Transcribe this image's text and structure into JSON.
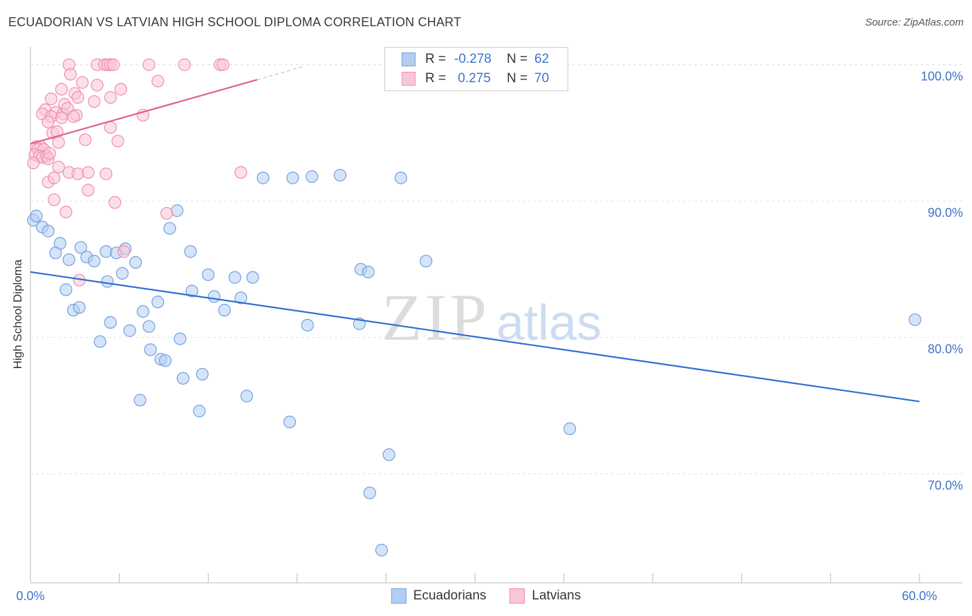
{
  "title": "ECUADORIAN VS LATVIAN HIGH SCHOOL DIPLOMA CORRELATION CHART",
  "source": "Source: ZipAtlas.com",
  "watermark": {
    "zip": "ZIP",
    "atlas": "atlas"
  },
  "legend": {
    "rows": [
      {
        "r_label": "R =",
        "r_value": "-0.278",
        "n_label": "N =",
        "n_value": "62"
      },
      {
        "r_label": "R =",
        "r_value": " 0.275",
        "n_label": "N =",
        "n_value": "70"
      }
    ]
  },
  "chart_data": {
    "type": "scatter",
    "title": "ECUADORIAN VS LATVIAN HIGH SCHOOL DIPLOMA CORRELATION CHART",
    "xlabel": "",
    "ylabel": "High School Diploma",
    "xlim": [
      0,
      60
    ],
    "ylim": [
      62,
      101
    ],
    "x_tick_labels": [
      "0.0%",
      "60.0%"
    ],
    "y_ticks": [
      70,
      80,
      90,
      100
    ],
    "y_tick_labels": [
      "70.0%",
      "80.0%",
      "90.0%",
      "100.0%"
    ],
    "grid": true,
    "legend_position": "top-center",
    "series": [
      {
        "name": "Ecuadorians",
        "color": "#6fa0e0",
        "fill": "#b4cdf2",
        "line_color": "#2f6fd0",
        "trend": {
          "x0": 0,
          "y0": 84.8,
          "x1": 60,
          "y1": 75.3
        },
        "points": [
          [
            0.2,
            88.6
          ],
          [
            0.4,
            88.9
          ],
          [
            0.8,
            88.1
          ],
          [
            1.2,
            87.8
          ],
          [
            2.0,
            86.9
          ],
          [
            1.7,
            86.2
          ],
          [
            2.6,
            85.7
          ],
          [
            3.4,
            86.6
          ],
          [
            3.8,
            85.9
          ],
          [
            4.3,
            85.6
          ],
          [
            5.1,
            86.3
          ],
          [
            5.8,
            86.2
          ],
          [
            6.4,
            86.5
          ],
          [
            7.1,
            85.5
          ],
          [
            6.2,
            84.7
          ],
          [
            5.2,
            84.1
          ],
          [
            2.4,
            83.5
          ],
          [
            2.9,
            82.0
          ],
          [
            3.3,
            82.2
          ],
          [
            5.4,
            81.1
          ],
          [
            4.7,
            79.7
          ],
          [
            6.7,
            80.5
          ],
          [
            7.6,
            81.9
          ],
          [
            8.0,
            80.8
          ],
          [
            8.6,
            82.6
          ],
          [
            8.1,
            79.1
          ],
          [
            8.8,
            78.4
          ],
          [
            9.1,
            78.3
          ],
          [
            10.1,
            79.9
          ],
          [
            9.4,
            88.0
          ],
          [
            9.9,
            89.3
          ],
          [
            10.8,
            86.3
          ],
          [
            10.9,
            83.4
          ],
          [
            12.0,
            84.6
          ],
          [
            12.4,
            83.0
          ],
          [
            13.1,
            82.0
          ],
          [
            13.8,
            84.4
          ],
          [
            14.2,
            82.9
          ],
          [
            15.0,
            84.4
          ],
          [
            10.3,
            77.0
          ],
          [
            11.6,
            77.3
          ],
          [
            11.4,
            74.6
          ],
          [
            7.4,
            75.4
          ],
          [
            14.6,
            75.7
          ],
          [
            15.7,
            91.7
          ],
          [
            17.7,
            91.7
          ],
          [
            19.0,
            91.8
          ],
          [
            20.9,
            91.9
          ],
          [
            25.0,
            91.7
          ],
          [
            18.7,
            80.9
          ],
          [
            22.3,
            85.0
          ],
          [
            22.8,
            84.8
          ],
          [
            26.7,
            85.6
          ],
          [
            22.2,
            81.0
          ],
          [
            17.5,
            73.8
          ],
          [
            24.2,
            71.4
          ],
          [
            22.9,
            68.6
          ],
          [
            23.7,
            64.4
          ],
          [
            36.4,
            73.3
          ],
          [
            59.7,
            81.3
          ]
        ]
      },
      {
        "name": "Latvians",
        "color": "#f08cae",
        "fill": "#f9c6d6",
        "line_color": "#e0608a",
        "trend": {
          "x0": 0,
          "y0": 94.2,
          "x1": 15.3,
          "y1": 98.9
        },
        "trend_dashed": {
          "x0": 15.3,
          "y0": 98.9,
          "x1": 18.5,
          "y1": 99.9
        },
        "points": [
          [
            2.6,
            100.0
          ],
          [
            4.5,
            100.0
          ],
          [
            5.0,
            100.0
          ],
          [
            5.2,
            100.0
          ],
          [
            5.4,
            100.0
          ],
          [
            5.6,
            100.0
          ],
          [
            8.0,
            100.0
          ],
          [
            10.4,
            100.0
          ],
          [
            12.8,
            100.0
          ],
          [
            13.0,
            100.0
          ],
          [
            2.7,
            99.3
          ],
          [
            3.5,
            98.7
          ],
          [
            4.5,
            98.5
          ],
          [
            6.1,
            98.2
          ],
          [
            8.6,
            98.8
          ],
          [
            2.1,
            98.2
          ],
          [
            3.0,
            97.9
          ],
          [
            3.2,
            97.6
          ],
          [
            4.3,
            97.3
          ],
          [
            5.4,
            97.6
          ],
          [
            1.4,
            97.5
          ],
          [
            2.3,
            97.1
          ],
          [
            1.0,
            96.7
          ],
          [
            1.7,
            96.5
          ],
          [
            2.2,
            96.4
          ],
          [
            2.5,
            96.8
          ],
          [
            3.1,
            96.3
          ],
          [
            0.8,
            96.4
          ],
          [
            1.4,
            96.2
          ],
          [
            2.1,
            96.1
          ],
          [
            2.9,
            96.2
          ],
          [
            7.6,
            96.3
          ],
          [
            1.2,
            95.8
          ],
          [
            5.4,
            95.4
          ],
          [
            1.5,
            95.0
          ],
          [
            1.8,
            95.1
          ],
          [
            3.7,
            94.5
          ],
          [
            5.9,
            94.4
          ],
          [
            1.9,
            94.3
          ],
          [
            0.4,
            94.0
          ],
          [
            0.7,
            94.0
          ],
          [
            0.5,
            93.8
          ],
          [
            0.9,
            93.8
          ],
          [
            0.3,
            93.4
          ],
          [
            0.6,
            93.3
          ],
          [
            0.8,
            93.2
          ],
          [
            1.1,
            93.3
          ],
          [
            1.2,
            93.1
          ],
          [
            1.3,
            93.5
          ],
          [
            0.2,
            92.8
          ],
          [
            1.9,
            92.5
          ],
          [
            2.6,
            92.1
          ],
          [
            3.2,
            92.0
          ],
          [
            3.9,
            92.1
          ],
          [
            5.1,
            92.0
          ],
          [
            14.2,
            92.1
          ],
          [
            1.2,
            91.4
          ],
          [
            1.6,
            91.7
          ],
          [
            3.9,
            90.8
          ],
          [
            1.6,
            90.1
          ],
          [
            5.7,
            89.9
          ],
          [
            2.4,
            89.2
          ],
          [
            9.2,
            89.1
          ],
          [
            6.3,
            86.3
          ],
          [
            3.3,
            84.2
          ]
        ]
      }
    ]
  }
}
